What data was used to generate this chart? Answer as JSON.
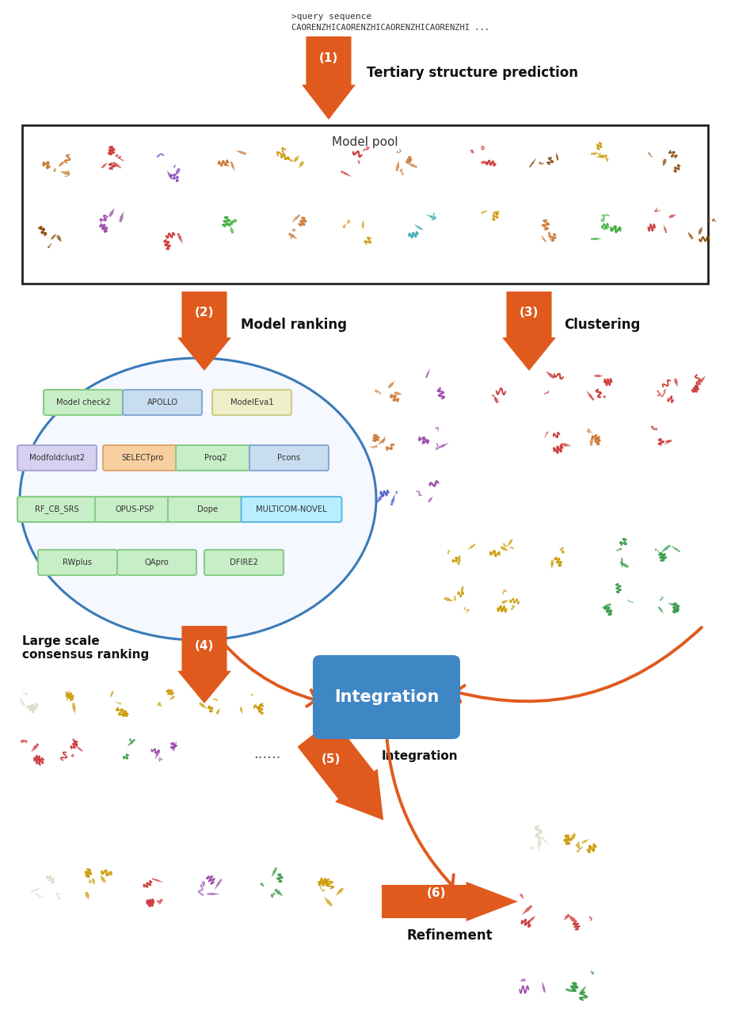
{
  "bg_color": "#ffffff",
  "arrow_color": "#E05A1E",
  "box_color": "#3F86C4",
  "box_text_color": "#ffffff",
  "ellipse_edge_color": "#3A7AB8",
  "step1_label": "Tertiary structure prediction",
  "step2_label": "Model ranking",
  "step3_label": "Clustering",
  "step4_label": "Large scale\nconsensus ranking",
  "step5_label": "Integration",
  "step6_label": "Refinement",
  "model_pool_label": "Model pool",
  "integration_label": "Integration",
  "query_line1": ">query sequence",
  "query_line2": "CAORENZHICAORENZHICAORENZHICAORENZHI ...",
  "qa_methods": [
    {
      "text": "Model check2",
      "bg": "#c8eec8",
      "border": "#88cc88",
      "row": 0,
      "col": 0
    },
    {
      "text": "APOLLO",
      "bg": "#c8ddf0",
      "border": "#88aad0",
      "row": 0,
      "col": 1
    },
    {
      "text": "ModelEva1",
      "bg": "#eeeec8",
      "border": "#cccc88",
      "row": 0,
      "col": 2
    },
    {
      "text": "Modfoldclust2",
      "bg": "#d8d0f0",
      "border": "#aaa8d8",
      "row": 1,
      "col": 0
    },
    {
      "text": "SELECTpro",
      "bg": "#f8d0a0",
      "border": "#ddaa70",
      "row": 1,
      "col": 1
    },
    {
      "text": "Proq2",
      "bg": "#c8eec8",
      "border": "#88cc88",
      "row": 1,
      "col": 2
    },
    {
      "text": "Pcons",
      "bg": "#c8ddf0",
      "border": "#88aad0",
      "row": 1,
      "col": 3
    },
    {
      "text": "RF_CB_SRS",
      "bg": "#c8eec8",
      "border": "#88cc88",
      "row": 2,
      "col": 0
    },
    {
      "text": "OPUS-PSP",
      "bg": "#c8eec8",
      "border": "#88cc88",
      "row": 2,
      "col": 1
    },
    {
      "text": "Dope",
      "bg": "#c8eec8",
      "border": "#88cc88",
      "row": 2,
      "col": 2
    },
    {
      "text": "MULTICOM-NOVEL",
      "bg": "#b8eeff",
      "border": "#60b8e8",
      "row": 2,
      "col": 3
    },
    {
      "text": "RWplus",
      "bg": "#c8eec8",
      "border": "#88cc88",
      "row": 3,
      "col": 0
    },
    {
      "text": "QApro",
      "bg": "#c8eec8",
      "border": "#88cc88",
      "row": 3,
      "col": 1
    },
    {
      "text": "DFIRE2",
      "bg": "#c8eec8",
      "border": "#88cc88",
      "row": 3,
      "col": 2
    }
  ]
}
